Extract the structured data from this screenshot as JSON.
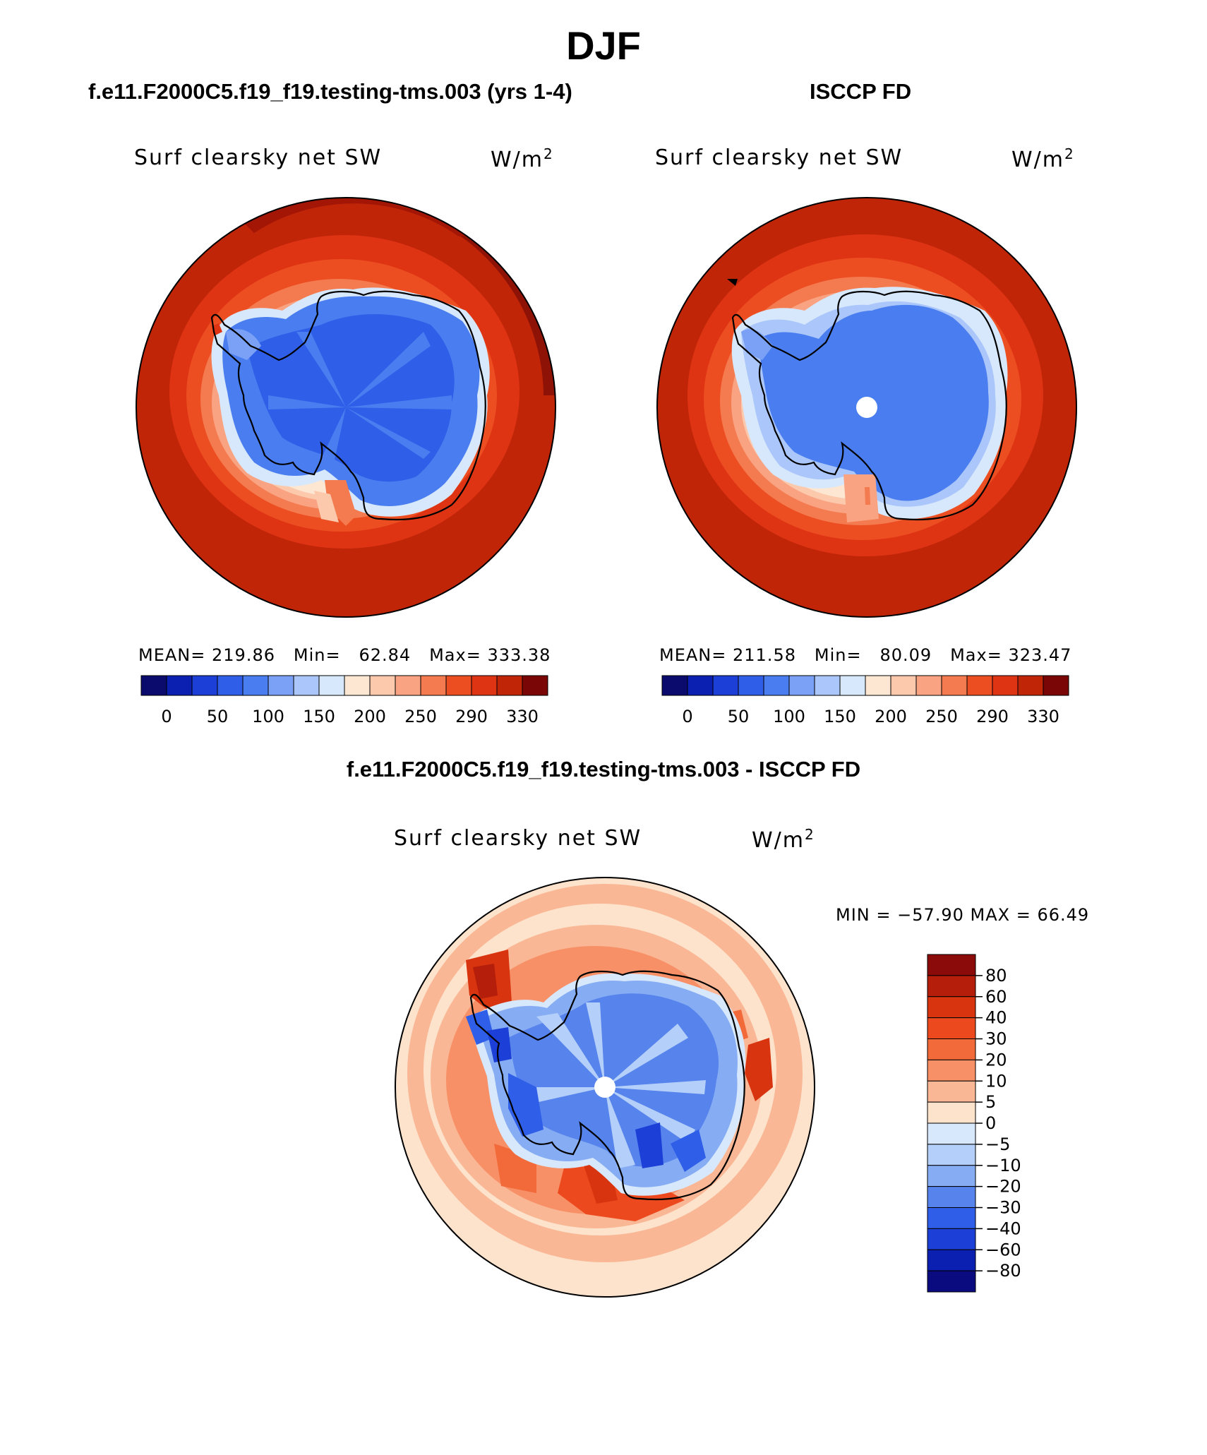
{
  "figure": {
    "title": "DJF",
    "panel_left": {
      "case_title": "f.e11.F2000C5.f19_f19.testing-tms.003 (yrs 1-4)",
      "variable": "Surf clearsky net SW",
      "units_base": "W/m",
      "units_exp": "2",
      "mean_label": "MEAN=",
      "mean_value": "219.86",
      "min_label": "Min=",
      "min_value": "62.84",
      "max_label": "Max=",
      "max_value": "333.38"
    },
    "panel_right": {
      "case_title": "ISCCP FD",
      "variable": "Surf clearsky net SW",
      "units_base": "W/m",
      "units_exp": "2",
      "mean_label": "MEAN=",
      "mean_value": "211.58",
      "min_label": "Min=",
      "min_value": "80.09",
      "max_label": "Max=",
      "max_value": "323.47"
    },
    "panel_diff": {
      "case_title": "f.e11.F2000C5.f19_f19.testing-tms.003 - ISCCP FD",
      "variable": "Surf clearsky net SW",
      "units_base": "W/m",
      "units_exp": "2",
      "minmax_text": "MIN = −57.90 MAX =   66.49"
    }
  },
  "chart_data": [
    {
      "type": "heatmap",
      "projection": "south polar stereographic",
      "title": "f.e11.F2000C5.f19_f19.testing-tms.003 (yrs 1-4)",
      "variable": "Surf clearsky net SW",
      "units": "W/m2",
      "mean": 219.86,
      "min": 62.84,
      "max": 333.38,
      "colorbar_ticks": [
        "0",
        "50",
        "100",
        "150",
        "200",
        "250",
        "290",
        "330"
      ],
      "colorbar_colors": [
        "#0b0b6e",
        "#0b1fb0",
        "#1c3fd8",
        "#2f5ee8",
        "#4a7ef0",
        "#7aa1f5",
        "#aac6fa",
        "#d7e8fc",
        "#fde7d3",
        "#fcc9ad",
        "#f9a382",
        "#f47a4f",
        "#ec4e22",
        "#de3414",
        "#c02508",
        "#7a0606"
      ]
    },
    {
      "type": "heatmap",
      "projection": "south polar stereographic",
      "title": "ISCCP FD",
      "variable": "Surf clearsky net SW",
      "units": "W/m2",
      "mean": 211.58,
      "min": 80.09,
      "max": 323.47,
      "colorbar_ticks": [
        "0",
        "50",
        "100",
        "150",
        "200",
        "250",
        "290",
        "330"
      ],
      "colorbar_colors": [
        "#0b0b6e",
        "#0b1fb0",
        "#1c3fd8",
        "#2f5ee8",
        "#4a7ef0",
        "#7aa1f5",
        "#aac6fa",
        "#d7e8fc",
        "#fde7d3",
        "#fcc9ad",
        "#f9a382",
        "#f47a4f",
        "#ec4e22",
        "#de3414",
        "#c02508",
        "#7a0606"
      ]
    },
    {
      "type": "heatmap",
      "projection": "south polar stereographic",
      "title": "f.e11.F2000C5.f19_f19.testing-tms.003 - ISCCP FD",
      "variable": "Surf clearsky net SW",
      "units": "W/m2",
      "min": -57.9,
      "max": 66.49,
      "colorbar_ticks": [
        "80",
        "60",
        "40",
        "30",
        "20",
        "10",
        "5",
        "0",
        "−5",
        "−10",
        "−20",
        "−30",
        "−40",
        "−60",
        "−80"
      ],
      "colorbar_colors": [
        "#8b0a0a",
        "#b41e0a",
        "#d8340f",
        "#ec4a1e",
        "#f2693a",
        "#f79066",
        "#fab795",
        "#fde3cc",
        "#d7e8fc",
        "#b4cff9",
        "#86acf3",
        "#5683ec",
        "#2f5ee8",
        "#1c3fd8",
        "#0b1fb0",
        "#0b0b80"
      ]
    }
  ]
}
